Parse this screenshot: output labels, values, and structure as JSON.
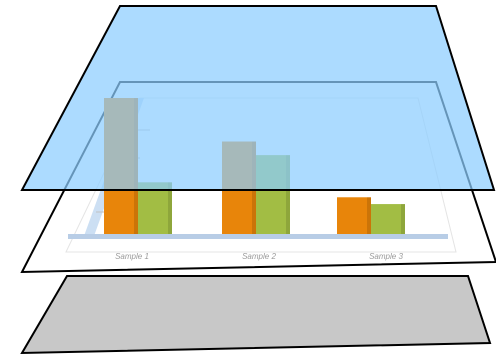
{
  "layers": [
    "gray-base",
    "chart-content",
    "blue-overlay"
  ],
  "colors": {
    "overlay": "#8ccdff",
    "base": "#c8c8c8",
    "series_a": "#e8850a",
    "series_b": "#a2bd44",
    "axis": "#b8cde6"
  },
  "chart_data": {
    "type": "bar",
    "categories": [
      "Sample 1",
      "Sample 2",
      "Sample 3"
    ],
    "series": [
      {
        "values": [
          100,
          68,
          27
        ]
      },
      {
        "values": [
          38,
          58,
          22
        ]
      }
    ],
    "ylim": [
      0,
      100
    ]
  }
}
